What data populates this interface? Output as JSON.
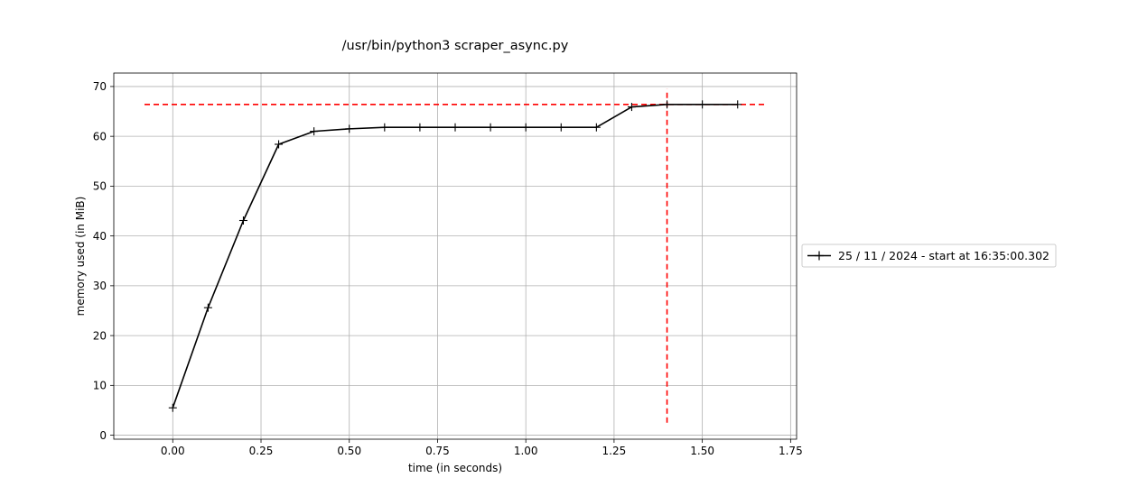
{
  "chart_data": {
    "type": "line",
    "title": "/usr/bin/python3 scraper_async.py",
    "xlabel": "time (in seconds)",
    "ylabel": "memory used (in MiB)",
    "xlim": [
      -0.167,
      1.767
    ],
    "ylim": [
      -0.8,
      72.7
    ],
    "xticks": [
      0.0,
      0.25,
      0.5,
      0.75,
      1.0,
      1.25,
      1.5,
      1.75
    ],
    "xtick_labels": [
      "0.00",
      "0.25",
      "0.50",
      "0.75",
      "1.00",
      "1.25",
      "1.50",
      "1.75"
    ],
    "yticks": [
      0,
      10,
      20,
      30,
      40,
      50,
      60,
      70
    ],
    "ytick_labels": [
      "0",
      "10",
      "20",
      "30",
      "40",
      "50",
      "60",
      "70"
    ],
    "grid": true,
    "legend_placement": "outside-right",
    "series": [
      {
        "name": "25 / 11 / 2024 - start at 16:35:00.302",
        "color": "#000000",
        "marker": "+",
        "x": [
          0.0,
          0.1,
          0.2,
          0.3,
          0.4,
          0.5,
          0.6,
          0.7,
          0.8,
          0.9,
          1.0,
          1.1,
          1.2,
          1.3,
          1.4,
          1.5,
          1.6
        ],
        "y": [
          5.5,
          25.6,
          43.1,
          58.4,
          61.0,
          61.5,
          61.8,
          61.8,
          61.8,
          61.8,
          61.8,
          61.8,
          61.8,
          65.9,
          66.4,
          66.4,
          66.4
        ]
      }
    ],
    "reference_lines": [
      {
        "orientation": "horizontal",
        "y": 66.4,
        "x_from": -0.08,
        "x_to": 1.68,
        "color": "#ff0000",
        "style": "dashed"
      },
      {
        "orientation": "vertical",
        "x": 1.4,
        "y_from": 2.5,
        "y_to": 69.5,
        "color": "#ff0000",
        "style": "dashed"
      }
    ]
  }
}
